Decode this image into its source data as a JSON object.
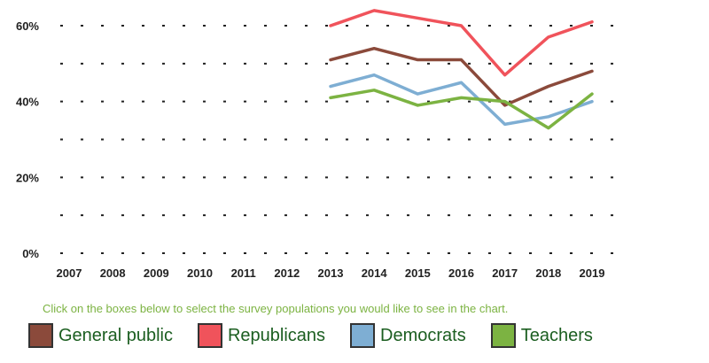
{
  "chart_data": {
    "type": "line",
    "title": "",
    "xlabel": "",
    "ylabel": "",
    "x": [
      "2007",
      "2008",
      "2009",
      "2010",
      "2011",
      "2012",
      "2013",
      "2014",
      "2015",
      "2016",
      "2017",
      "2018",
      "2019"
    ],
    "y_ticks": [
      "0%",
      "20%",
      "40%",
      "60%"
    ],
    "ylim": [
      0,
      65
    ],
    "grid": "dotted horizontal",
    "series": [
      {
        "name": "General public",
        "color": "#8b4a3b",
        "values": [
          null,
          null,
          null,
          null,
          null,
          null,
          51,
          54,
          51,
          51,
          39,
          44,
          48
        ]
      },
      {
        "name": "Republicans",
        "color": "#f0535b",
        "values": [
          null,
          null,
          null,
          null,
          null,
          null,
          60,
          64,
          62,
          60,
          47,
          57,
          61
        ]
      },
      {
        "name": "Democrats",
        "color": "#7eaed3",
        "values": [
          null,
          null,
          null,
          null,
          null,
          null,
          44,
          47,
          42,
          45,
          34,
          36,
          40
        ]
      },
      {
        "name": "Teachers",
        "color": "#7cb342",
        "values": [
          null,
          null,
          null,
          null,
          null,
          null,
          41,
          43,
          39,
          41,
          40,
          33,
          42
        ]
      }
    ]
  },
  "instruction_text": "Click on the boxes below to select the survey populations you would like to see in the chart.",
  "legend": [
    {
      "label": "General public",
      "color": "#8b4a3b"
    },
    {
      "label": "Republicans",
      "color": "#f0535b"
    },
    {
      "label": "Democrats",
      "color": "#7eaed3"
    },
    {
      "label": "Teachers",
      "color": "#7cb342"
    }
  ],
  "colors": {
    "legend_text": "#1b5e20",
    "instruction": "#7cb342",
    "axis_text": "#222222"
  }
}
